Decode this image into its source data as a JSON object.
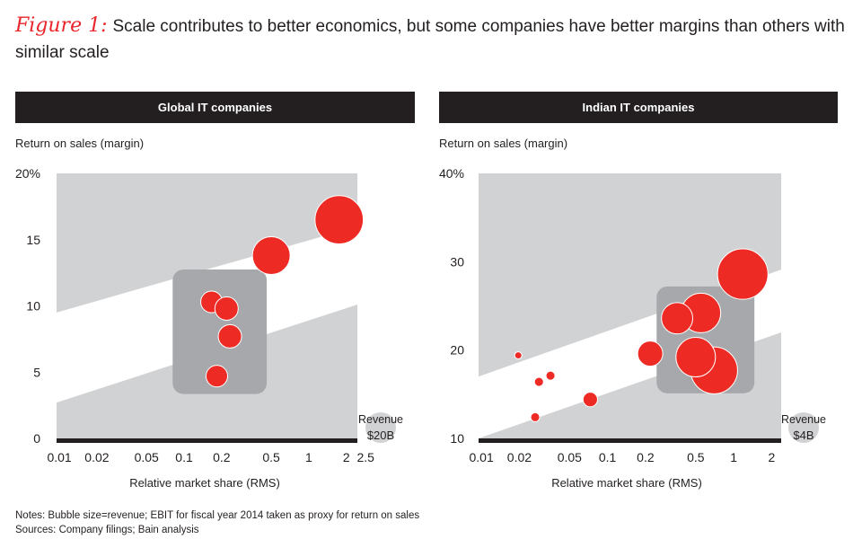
{
  "title": {
    "figure_label": "Figure 1:",
    "text": "Scale contributes to better economics, but some companies have better margins than others with similar scale"
  },
  "notes": [
    "Notes: Bubble size=revenue; EBIT for fiscal year 2014 taken as proxy for return on sales",
    "Sources: Company filings; Bain analysis"
  ],
  "colors": {
    "bubble": "#ee2a24",
    "band": "#d1d2d4",
    "highlight": "#a7a8ab",
    "header": "#231f20"
  },
  "chart_data": [
    {
      "type": "scatter",
      "title": "Global IT companies",
      "ylabel": "Return on sales (margin)",
      "xlabel": "Relative market share (RMS)",
      "xscale": "log",
      "xlim": [
        0.0095,
        2.45
      ],
      "ylim": [
        0,
        20
      ],
      "xticks": [
        0.01,
        0.02,
        0.05,
        0.1,
        0.2,
        0.5,
        1,
        2,
        2.5
      ],
      "xtick_labels": [
        "0.01",
        "0.02",
        "0.05",
        "0.1",
        "0.2",
        "0.5",
        "1",
        "2",
        "2.5"
      ],
      "yticks": [
        0,
        5,
        10,
        15,
        20
      ],
      "ytick_labels": [
        "0",
        "5",
        "10",
        "15",
        "20%"
      ],
      "band_upper": [
        [
          0.0095,
          9.5
        ],
        [
          2.45,
          16.0
        ]
      ],
      "band_lower": [
        [
          0.0095,
          2.7
        ],
        [
          2.45,
          10.1
        ]
      ],
      "highlight_box": {
        "x": [
          0.081,
          0.46
        ],
        "y": [
          3.35,
          12.75
        ]
      },
      "legend": {
        "label": "Revenue",
        "value_label": "$20B",
        "value": 20
      },
      "points": [
        {
          "x": 1.75,
          "y": 16.5,
          "revenue": 50
        },
        {
          "x": 0.5,
          "y": 13.8,
          "revenue": 30.5
        },
        {
          "x": 0.166,
          "y": 10.3,
          "revenue": 10
        },
        {
          "x": 0.219,
          "y": 9.8,
          "revenue": 11.7
        },
        {
          "x": 0.233,
          "y": 7.7,
          "revenue": 11.7
        },
        {
          "x": 0.183,
          "y": 4.7,
          "revenue": 10
        }
      ]
    },
    {
      "type": "scatter",
      "title": "Indian IT companies",
      "ylabel": "Return on sales (margin)",
      "xlabel": "Relative market share (RMS)",
      "xscale": "log",
      "xlim": [
        0.0095,
        2.38
      ],
      "ylim": [
        10,
        40
      ],
      "xticks": [
        0.01,
        0.02,
        0.05,
        0.1,
        0.2,
        0.5,
        1,
        2
      ],
      "xtick_labels": [
        "0.01",
        "0.02",
        "0.05",
        "0.1",
        "0.2",
        "0.5",
        "1",
        "2"
      ],
      "yticks": [
        10,
        20,
        30,
        40
      ],
      "ytick_labels": [
        "10",
        "20",
        "30",
        "40%"
      ],
      "band_upper": [
        [
          0.0095,
          17.0
        ],
        [
          2.38,
          29.1
        ]
      ],
      "band_lower": [
        [
          0.0095,
          10.0
        ],
        [
          2.38,
          22.0
        ]
      ],
      "highlight_box": {
        "x": [
          0.245,
          1.46
        ],
        "y": [
          15.1,
          27.2
        ]
      },
      "legend": {
        "label": "Revenue",
        "value_label": "$4B",
        "value": 4
      },
      "points": [
        {
          "x": 1.18,
          "y": 28.6,
          "revenue": 10.9
        },
        {
          "x": 0.55,
          "y": 24.2,
          "revenue": 6.7
        },
        {
          "x": 0.356,
          "y": 23.6,
          "revenue": 4.2
        },
        {
          "x": 0.7,
          "y": 17.7,
          "revenue": 9.4
        },
        {
          "x": 0.5,
          "y": 19.2,
          "revenue": 6.7
        },
        {
          "x": 0.218,
          "y": 19.6,
          "revenue": 2.7
        },
        {
          "x": 0.073,
          "y": 14.4,
          "revenue": 0.9
        },
        {
          "x": 0.0196,
          "y": 19.4,
          "revenue": 0.22
        },
        {
          "x": 0.0353,
          "y": 17.1,
          "revenue": 0.35
        },
        {
          "x": 0.0286,
          "y": 16.4,
          "revenue": 0.35
        },
        {
          "x": 0.0267,
          "y": 12.4,
          "revenue": 0.35
        }
      ]
    }
  ]
}
